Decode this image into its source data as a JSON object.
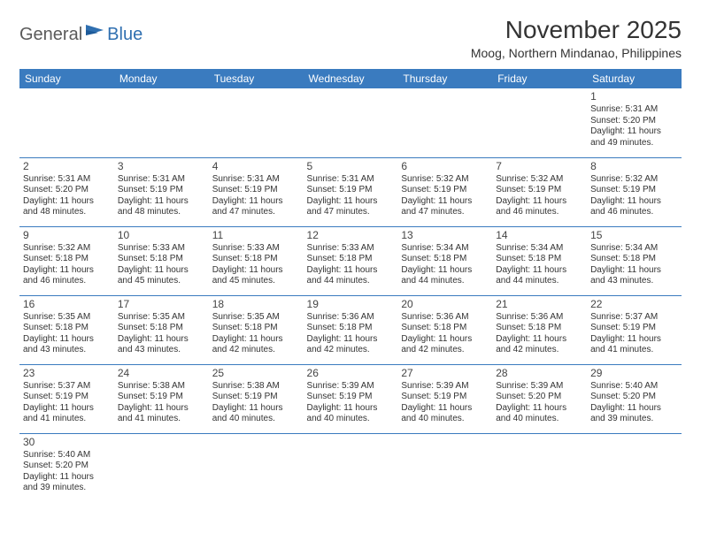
{
  "logo": {
    "text1": "General",
    "text2": "Blue"
  },
  "title": "November 2025",
  "location": "Moog, Northern Mindanao, Philippines",
  "colors": {
    "header_bg": "#3a7bbf",
    "header_text": "#ffffff",
    "border": "#3a7bbf",
    "text": "#333333",
    "logo_gray": "#5a5a5a",
    "logo_blue": "#2f6fb0"
  },
  "weekdays": [
    "Sunday",
    "Monday",
    "Tuesday",
    "Wednesday",
    "Thursday",
    "Friday",
    "Saturday"
  ],
  "rows": [
    [
      null,
      null,
      null,
      null,
      null,
      null,
      {
        "n": "1",
        "sr": "5:31 AM",
        "ss": "5:20 PM",
        "dl": "11 hours and 49 minutes."
      }
    ],
    [
      {
        "n": "2",
        "sr": "5:31 AM",
        "ss": "5:20 PM",
        "dl": "11 hours and 48 minutes."
      },
      {
        "n": "3",
        "sr": "5:31 AM",
        "ss": "5:19 PM",
        "dl": "11 hours and 48 minutes."
      },
      {
        "n": "4",
        "sr": "5:31 AM",
        "ss": "5:19 PM",
        "dl": "11 hours and 47 minutes."
      },
      {
        "n": "5",
        "sr": "5:31 AM",
        "ss": "5:19 PM",
        "dl": "11 hours and 47 minutes."
      },
      {
        "n": "6",
        "sr": "5:32 AM",
        "ss": "5:19 PM",
        "dl": "11 hours and 47 minutes."
      },
      {
        "n": "7",
        "sr": "5:32 AM",
        "ss": "5:19 PM",
        "dl": "11 hours and 46 minutes."
      },
      {
        "n": "8",
        "sr": "5:32 AM",
        "ss": "5:19 PM",
        "dl": "11 hours and 46 minutes."
      }
    ],
    [
      {
        "n": "9",
        "sr": "5:32 AM",
        "ss": "5:18 PM",
        "dl": "11 hours and 46 minutes."
      },
      {
        "n": "10",
        "sr": "5:33 AM",
        "ss": "5:18 PM",
        "dl": "11 hours and 45 minutes."
      },
      {
        "n": "11",
        "sr": "5:33 AM",
        "ss": "5:18 PM",
        "dl": "11 hours and 45 minutes."
      },
      {
        "n": "12",
        "sr": "5:33 AM",
        "ss": "5:18 PM",
        "dl": "11 hours and 44 minutes."
      },
      {
        "n": "13",
        "sr": "5:34 AM",
        "ss": "5:18 PM",
        "dl": "11 hours and 44 minutes."
      },
      {
        "n": "14",
        "sr": "5:34 AM",
        "ss": "5:18 PM",
        "dl": "11 hours and 44 minutes."
      },
      {
        "n": "15",
        "sr": "5:34 AM",
        "ss": "5:18 PM",
        "dl": "11 hours and 43 minutes."
      }
    ],
    [
      {
        "n": "16",
        "sr": "5:35 AM",
        "ss": "5:18 PM",
        "dl": "11 hours and 43 minutes."
      },
      {
        "n": "17",
        "sr": "5:35 AM",
        "ss": "5:18 PM",
        "dl": "11 hours and 43 minutes."
      },
      {
        "n": "18",
        "sr": "5:35 AM",
        "ss": "5:18 PM",
        "dl": "11 hours and 42 minutes."
      },
      {
        "n": "19",
        "sr": "5:36 AM",
        "ss": "5:18 PM",
        "dl": "11 hours and 42 minutes."
      },
      {
        "n": "20",
        "sr": "5:36 AM",
        "ss": "5:18 PM",
        "dl": "11 hours and 42 minutes."
      },
      {
        "n": "21",
        "sr": "5:36 AM",
        "ss": "5:18 PM",
        "dl": "11 hours and 42 minutes."
      },
      {
        "n": "22",
        "sr": "5:37 AM",
        "ss": "5:19 PM",
        "dl": "11 hours and 41 minutes."
      }
    ],
    [
      {
        "n": "23",
        "sr": "5:37 AM",
        "ss": "5:19 PM",
        "dl": "11 hours and 41 minutes."
      },
      {
        "n": "24",
        "sr": "5:38 AM",
        "ss": "5:19 PM",
        "dl": "11 hours and 41 minutes."
      },
      {
        "n": "25",
        "sr": "5:38 AM",
        "ss": "5:19 PM",
        "dl": "11 hours and 40 minutes."
      },
      {
        "n": "26",
        "sr": "5:39 AM",
        "ss": "5:19 PM",
        "dl": "11 hours and 40 minutes."
      },
      {
        "n": "27",
        "sr": "5:39 AM",
        "ss": "5:19 PM",
        "dl": "11 hours and 40 minutes."
      },
      {
        "n": "28",
        "sr": "5:39 AM",
        "ss": "5:20 PM",
        "dl": "11 hours and 40 minutes."
      },
      {
        "n": "29",
        "sr": "5:40 AM",
        "ss": "5:20 PM",
        "dl": "11 hours and 39 minutes."
      }
    ],
    [
      {
        "n": "30",
        "sr": "5:40 AM",
        "ss": "5:20 PM",
        "dl": "11 hours and 39 minutes."
      },
      null,
      null,
      null,
      null,
      null,
      null
    ]
  ],
  "labels": {
    "sunrise": "Sunrise:",
    "sunset": "Sunset:",
    "daylight": "Daylight:"
  }
}
